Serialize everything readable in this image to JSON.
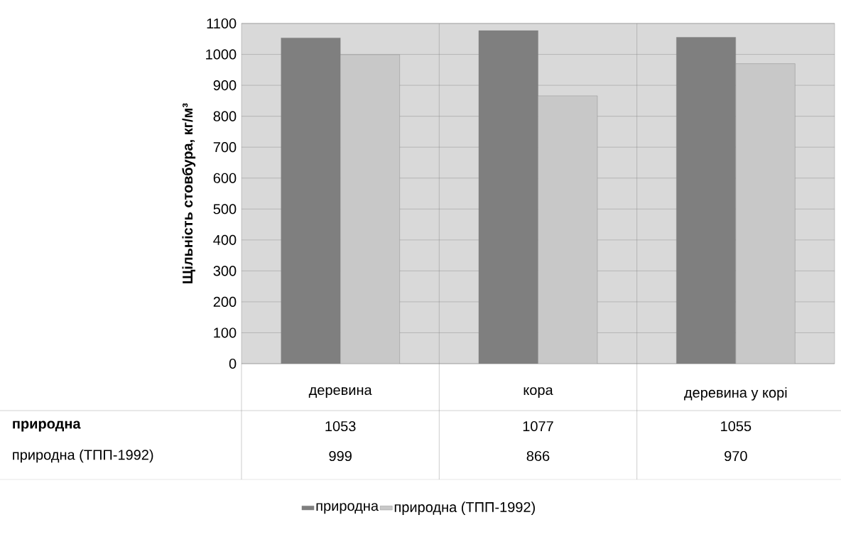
{
  "chart_data": {
    "type": "bar",
    "ylabel": "Щільність стовбура, кг/м³",
    "categories": [
      "деревина",
      "кора",
      "деревина у корі"
    ],
    "series": [
      {
        "name": "природна",
        "color": "#7f7f7f",
        "values": [
          1053,
          1077,
          1055
        ]
      },
      {
        "name": "природна (ТПП-1992)",
        "color": "#c8c8c8",
        "values": [
          999,
          866,
          970
        ]
      }
    ],
    "ylim": [
      0,
      1100
    ],
    "yticks": [
      0,
      100,
      200,
      300,
      400,
      500,
      600,
      700,
      800,
      900,
      1000,
      1100
    ],
    "grid": true,
    "legend": "bottom",
    "data_labels": true
  }
}
